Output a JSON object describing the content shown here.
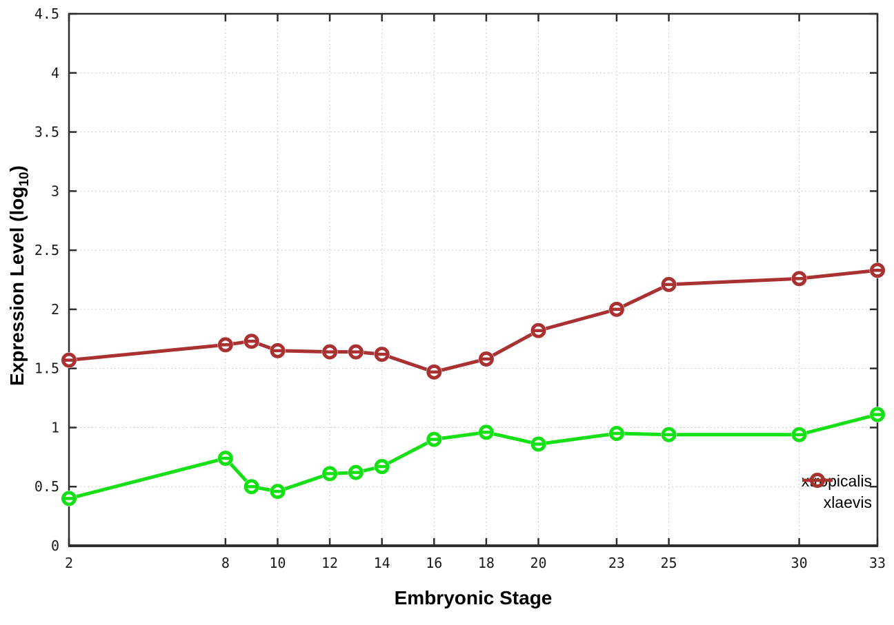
{
  "figure": {
    "background": "#ffffff",
    "border_color": "#2d2d2d",
    "grid_color": "#bcbcbc",
    "tick_text_color": "#1a1a1a"
  },
  "chart_data": {
    "type": "line",
    "title": "",
    "xlabel": "Embryonic Stage",
    "ylabel_prefix": "Expression Level (log",
    "ylabel_sub": "10",
    "ylabel_suffix": ")",
    "xlim": [
      2,
      33
    ],
    "ylim": [
      0,
      4.5
    ],
    "grid": "dotted",
    "legend_position": "inside-bottom-right",
    "marker": "open-circle-with-horizontal-dash",
    "x": [
      2,
      8,
      9,
      10,
      12,
      13,
      14,
      16,
      18,
      20,
      23,
      25,
      30,
      33
    ],
    "series": [
      {
        "name": "xtropicalis",
        "color": "#15e015",
        "values": [
          0.4,
          0.74,
          0.5,
          0.46,
          0.61,
          0.62,
          0.67,
          0.9,
          0.96,
          0.86,
          0.95,
          0.94,
          0.94,
          1.11
        ]
      },
      {
        "name": "xlaevis",
        "color": "#a93131",
        "values": [
          1.57,
          1.7,
          1.73,
          1.65,
          1.64,
          1.64,
          1.62,
          1.47,
          1.58,
          1.82,
          2.0,
          2.21,
          2.26,
          2.33
        ]
      }
    ],
    "x_ticks": {
      "values": [
        2,
        8,
        10,
        12,
        14,
        16,
        18,
        20,
        23,
        25,
        30,
        33
      ],
      "labels": [
        "2",
        "8",
        "10",
        "12",
        "14",
        "16",
        "18",
        "20",
        "23",
        "25",
        "30",
        "33"
      ]
    },
    "y_ticks": {
      "values": [
        0,
        0.5,
        1,
        1.5,
        2,
        2.5,
        3,
        3.5,
        4,
        4.5
      ],
      "labels": [
        "0",
        "0.5",
        "1",
        "1.5",
        "2",
        "2.5",
        "3",
        "3.5",
        "4",
        "4.5"
      ]
    }
  }
}
